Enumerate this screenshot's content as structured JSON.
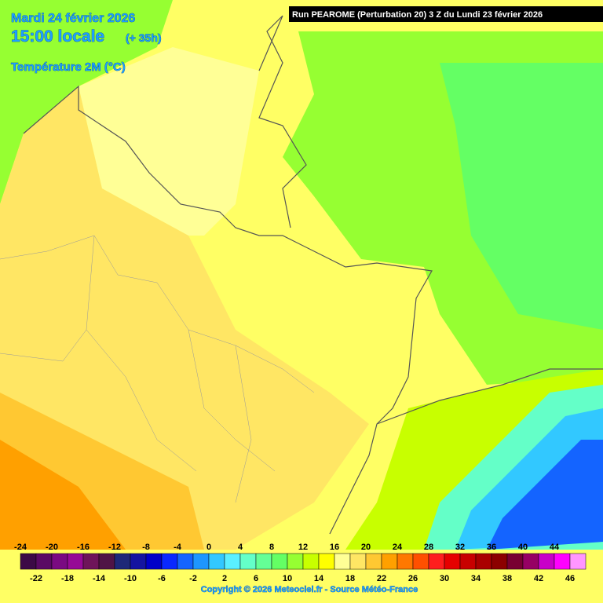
{
  "header": {
    "date": "Mardi 24 février 2026",
    "time": "15:00 locale",
    "lead": "(+ 35h)",
    "parameter": "Température 2M (°C)",
    "run": "Run PEAROME (Perturbation 20) 3 Z du Lundi 23 février 2026"
  },
  "legend": {
    "values": [
      -24,
      -22,
      -20,
      -18,
      -16,
      -14,
      -12,
      -10,
      -8,
      -6,
      -4,
      -2,
      0,
      2,
      4,
      6,
      8,
      10,
      12,
      14,
      16,
      18,
      20,
      22,
      24,
      26,
      28,
      30,
      32,
      34,
      36,
      38,
      40,
      42,
      44,
      46
    ],
    "colors": [
      "#3c0a46",
      "#5a0a64",
      "#7a0a82",
      "#960a96",
      "#6e145a",
      "#501446",
      "#1e2878",
      "#1414a0",
      "#0000c8",
      "#0a28ff",
      "#1464ff",
      "#1e96ff",
      "#32c8ff",
      "#5af0ff",
      "#64ffc8",
      "#64ff96",
      "#64ff64",
      "#96ff32",
      "#c8ff00",
      "#ffff00",
      "#ffff96",
      "#ffe664",
      "#ffc832",
      "#ffa000",
      "#ff7800",
      "#ff5000",
      "#ff1e1e",
      "#e60000",
      "#c80000",
      "#aa0000",
      "#8c0000",
      "#780032",
      "#960064",
      "#c800c8",
      "#ff00ff",
      "#ff96ff"
    ]
  },
  "footer": {
    "copyright": "Copyright © 2026 Meteociel.fr - Source Météo-France"
  }
}
